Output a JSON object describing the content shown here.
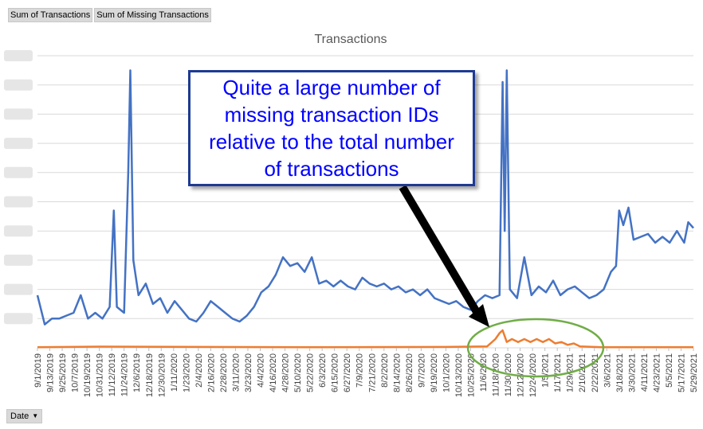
{
  "field_buttons": [
    "Sum of Transactions",
    "Sum of Missing Transactions"
  ],
  "date_filter": {
    "label": "Date",
    "icon": "dropdown-arrow-icon"
  },
  "callout": {
    "text": "Quite a large number of missing transaction IDs relative to the total number of transactions",
    "color": "#0000ff",
    "border_color": "#1f3a93"
  },
  "colors": {
    "transactions": "#4472c4",
    "missing": "#ed7d31",
    "highlight_ellipse": "#70ad47",
    "arrow": "#000000"
  },
  "chart_data": {
    "type": "line",
    "title": "Transactions",
    "x_range": [
      "2019-09-01",
      "2021-05-29"
    ],
    "x_tick_labels": [
      "9/1/2019",
      "9/13/2019",
      "9/25/2019",
      "10/7/2019",
      "10/19/2019",
      "10/31/2019",
      "11/12/2019",
      "11/24/2019",
      "12/6/2019",
      "12/18/2019",
      "12/30/2019",
      "1/11/2020",
      "1/23/2020",
      "2/4/2020",
      "2/16/2020",
      "2/28/2020",
      "3/11/2020",
      "3/23/2020",
      "4/4/2020",
      "4/16/2020",
      "4/28/2020",
      "5/10/2020",
      "5/22/2020",
      "6/3/2020",
      "6/15/2020",
      "6/27/2020",
      "7/9/2020",
      "7/21/2020",
      "8/2/2020",
      "8/14/2020",
      "8/26/2020",
      "9/7/2020",
      "9/19/2020",
      "10/1/2020",
      "10/13/2020",
      "10/25/2020",
      "11/6/2020",
      "11/18/2020",
      "11/30/2020",
      "12/12/2020",
      "12/24/2020",
      "1/5/2021",
      "1/17/2021",
      "1/29/2021",
      "2/10/2021",
      "2/22/2021",
      "3/6/2021",
      "3/18/2021",
      "3/30/2021",
      "4/11/2021",
      "4/23/2021",
      "5/5/2021",
      "5/17/2021",
      "5/29/2021"
    ],
    "y_axis": "tick labels blurred in source; values in relative units 0-100",
    "y_range": [
      0,
      100
    ],
    "grid": true,
    "legend": "none",
    "series": [
      {
        "name": "Sum of Transactions",
        "points": [
          [
            "2019-09-01",
            18
          ],
          [
            "2019-09-08",
            8
          ],
          [
            "2019-09-15",
            10
          ],
          [
            "2019-09-22",
            10
          ],
          [
            "2019-09-29",
            11
          ],
          [
            "2019-10-06",
            12
          ],
          [
            "2019-10-13",
            18
          ],
          [
            "2019-10-20",
            10
          ],
          [
            "2019-10-27",
            12
          ],
          [
            "2019-11-03",
            10
          ],
          [
            "2019-11-10",
            14
          ],
          [
            "2019-11-14",
            47
          ],
          [
            "2019-11-17",
            14
          ],
          [
            "2019-11-24",
            12
          ],
          [
            "2019-11-28",
            60
          ],
          [
            "2019-11-30",
            95
          ],
          [
            "2019-12-03",
            30
          ],
          [
            "2019-12-08",
            18
          ],
          [
            "2019-12-15",
            22
          ],
          [
            "2019-12-22",
            15
          ],
          [
            "2019-12-29",
            17
          ],
          [
            "2020-01-05",
            12
          ],
          [
            "2020-01-12",
            16
          ],
          [
            "2020-01-19",
            13
          ],
          [
            "2020-01-26",
            10
          ],
          [
            "2020-02-02",
            9
          ],
          [
            "2020-02-09",
            12
          ],
          [
            "2020-02-16",
            16
          ],
          [
            "2020-02-23",
            14
          ],
          [
            "2020-03-01",
            12
          ],
          [
            "2020-03-08",
            10
          ],
          [
            "2020-03-15",
            9
          ],
          [
            "2020-03-22",
            11
          ],
          [
            "2020-03-29",
            14
          ],
          [
            "2020-04-05",
            19
          ],
          [
            "2020-04-12",
            21
          ],
          [
            "2020-04-19",
            25
          ],
          [
            "2020-04-26",
            31
          ],
          [
            "2020-05-03",
            28
          ],
          [
            "2020-05-10",
            29
          ],
          [
            "2020-05-17",
            26
          ],
          [
            "2020-05-24",
            31
          ],
          [
            "2020-05-31",
            22
          ],
          [
            "2020-06-07",
            23
          ],
          [
            "2020-06-14",
            21
          ],
          [
            "2020-06-21",
            23
          ],
          [
            "2020-06-28",
            21
          ],
          [
            "2020-07-05",
            20
          ],
          [
            "2020-07-12",
            24
          ],
          [
            "2020-07-19",
            22
          ],
          [
            "2020-07-26",
            21
          ],
          [
            "2020-08-02",
            22
          ],
          [
            "2020-08-09",
            20
          ],
          [
            "2020-08-16",
            21
          ],
          [
            "2020-08-23",
            19
          ],
          [
            "2020-08-30",
            20
          ],
          [
            "2020-09-06",
            18
          ],
          [
            "2020-09-13",
            20
          ],
          [
            "2020-09-20",
            17
          ],
          [
            "2020-09-27",
            16
          ],
          [
            "2020-10-04",
            15
          ],
          [
            "2020-10-11",
            16
          ],
          [
            "2020-10-18",
            14
          ],
          [
            "2020-10-25",
            13
          ],
          [
            "2020-11-01",
            16
          ],
          [
            "2020-11-08",
            18
          ],
          [
            "2020-11-15",
            17
          ],
          [
            "2020-11-22",
            18
          ],
          [
            "2020-11-25",
            91
          ],
          [
            "2020-11-27",
            40
          ],
          [
            "2020-11-29",
            95
          ],
          [
            "2020-12-02",
            20
          ],
          [
            "2020-12-09",
            17
          ],
          [
            "2020-12-16",
            31
          ],
          [
            "2020-12-23",
            18
          ],
          [
            "2020-12-30",
            21
          ],
          [
            "2021-01-06",
            19
          ],
          [
            "2021-01-13",
            23
          ],
          [
            "2021-01-20",
            18
          ],
          [
            "2021-01-27",
            20
          ],
          [
            "2021-02-03",
            21
          ],
          [
            "2021-02-10",
            19
          ],
          [
            "2021-02-17",
            17
          ],
          [
            "2021-02-24",
            18
          ],
          [
            "2021-03-03",
            20
          ],
          [
            "2021-03-10",
            26
          ],
          [
            "2021-03-15",
            28
          ],
          [
            "2021-03-18",
            47
          ],
          [
            "2021-03-22",
            42
          ],
          [
            "2021-03-27",
            48
          ],
          [
            "2021-04-01",
            37
          ],
          [
            "2021-04-08",
            38
          ],
          [
            "2021-04-15",
            39
          ],
          [
            "2021-04-22",
            36
          ],
          [
            "2021-04-29",
            38
          ],
          [
            "2021-05-06",
            36
          ],
          [
            "2021-05-13",
            40
          ],
          [
            "2021-05-20",
            36
          ],
          [
            "2021-05-24",
            43
          ],
          [
            "2021-05-29",
            41
          ]
        ]
      },
      {
        "name": "Sum of Missing Transactions",
        "points": [
          [
            "2019-09-01",
            0.2
          ],
          [
            "2019-11-01",
            0.4
          ],
          [
            "2020-06-01",
            0.2
          ],
          [
            "2020-10-01",
            0.3
          ],
          [
            "2020-11-10",
            0.5
          ],
          [
            "2020-11-18",
            3
          ],
          [
            "2020-11-22",
            5
          ],
          [
            "2020-11-25",
            6
          ],
          [
            "2020-11-29",
            2
          ],
          [
            "2020-12-04",
            3
          ],
          [
            "2020-12-10",
            2
          ],
          [
            "2020-12-16",
            3
          ],
          [
            "2020-12-22",
            2
          ],
          [
            "2020-12-28",
            3
          ],
          [
            "2021-01-03",
            2
          ],
          [
            "2021-01-09",
            3
          ],
          [
            "2021-01-15",
            1.5
          ],
          [
            "2021-01-21",
            2
          ],
          [
            "2021-01-27",
            1
          ],
          [
            "2021-02-02",
            1.5
          ],
          [
            "2021-02-08",
            0.5
          ],
          [
            "2021-03-01",
            0.2
          ],
          [
            "2021-05-29",
            0.2
          ]
        ]
      }
    ]
  }
}
